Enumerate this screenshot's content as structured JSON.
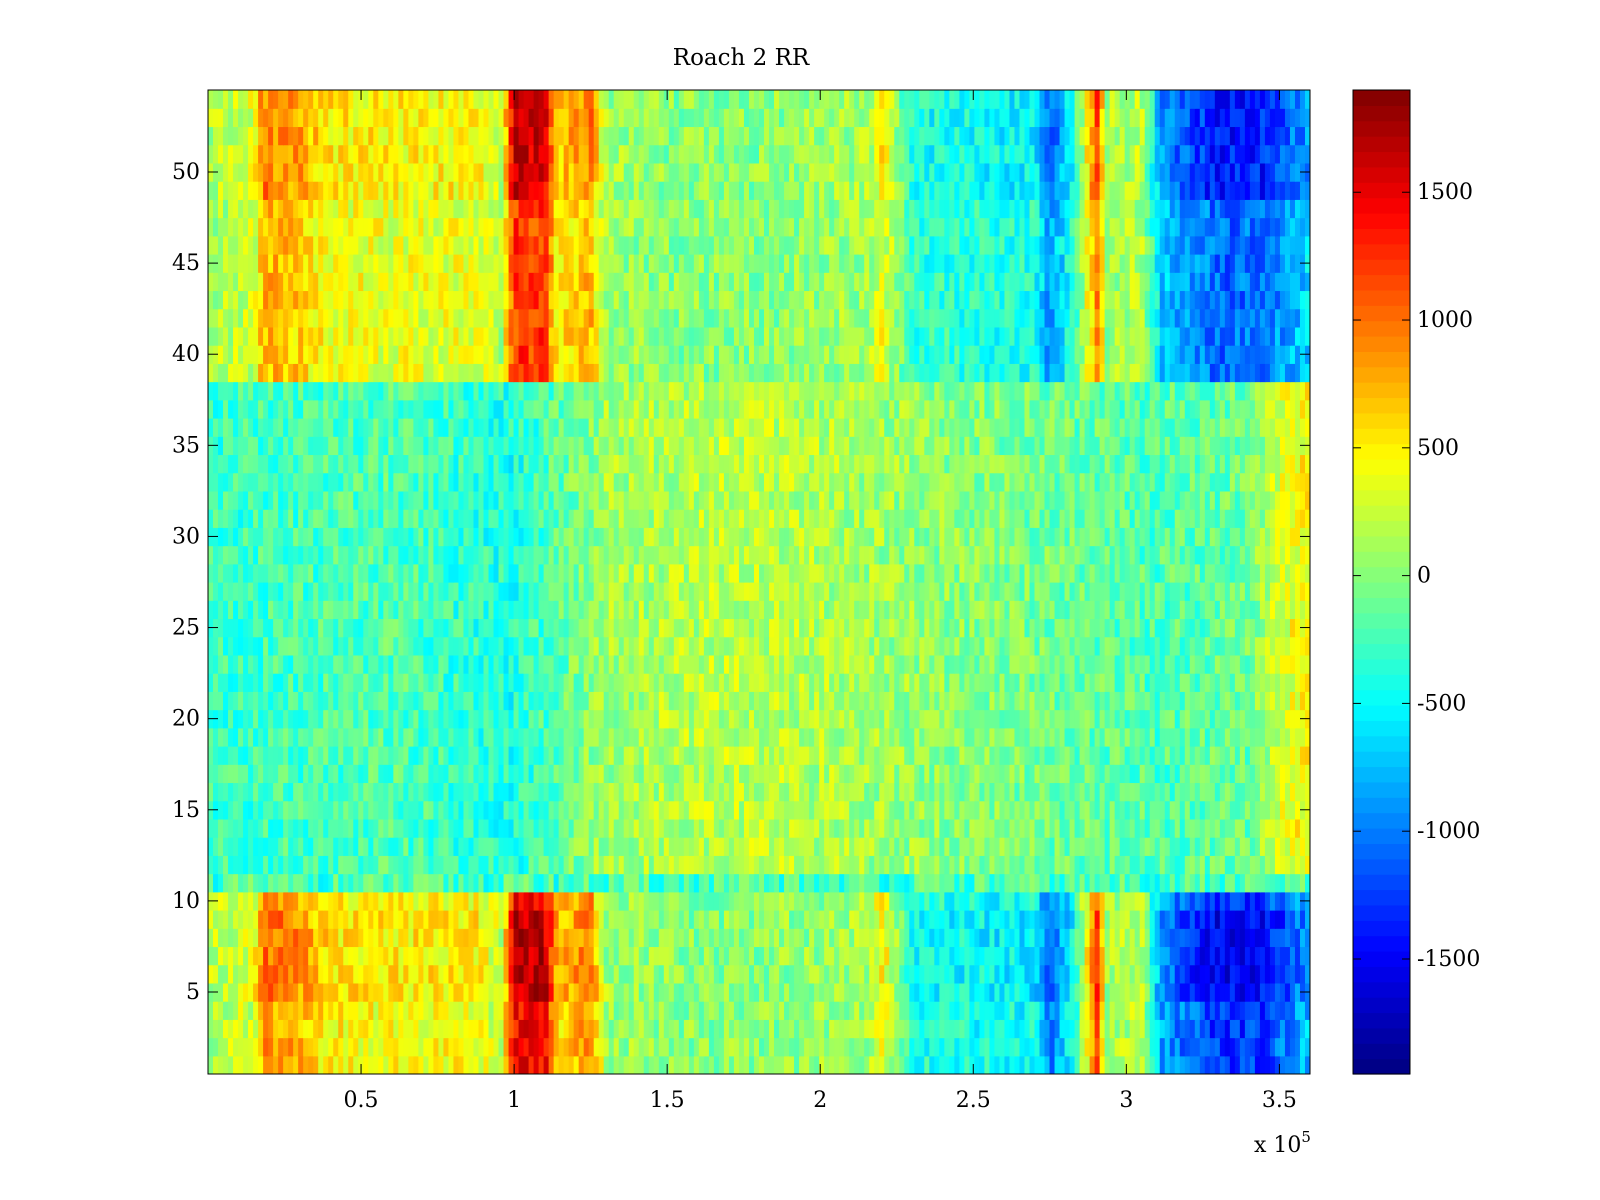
{
  "chart_data": {
    "type": "heatmap",
    "title": "Roach 2 RR",
    "xlabel": "",
    "ylabel": "",
    "x_exponent_label": "x 10",
    "x_exponent_power": "5",
    "xlim": [
      0,
      360000
    ],
    "ylim": [
      0.5,
      54.5
    ],
    "x_ticks": [
      {
        "value": 50000,
        "label": "0.5"
      },
      {
        "value": 100000,
        "label": "1"
      },
      {
        "value": 150000,
        "label": "1.5"
      },
      {
        "value": 200000,
        "label": "2"
      },
      {
        "value": 250000,
        "label": "2.5"
      },
      {
        "value": 300000,
        "label": "3"
      },
      {
        "value": 350000,
        "label": "3.5"
      }
    ],
    "y_ticks": [
      {
        "value": 5,
        "label": "5"
      },
      {
        "value": 10,
        "label": "10"
      },
      {
        "value": 15,
        "label": "15"
      },
      {
        "value": 20,
        "label": "20"
      },
      {
        "value": 25,
        "label": "25"
      },
      {
        "value": 30,
        "label": "30"
      },
      {
        "value": 35,
        "label": "35"
      },
      {
        "value": 40,
        "label": "40"
      },
      {
        "value": 45,
        "label": "45"
      },
      {
        "value": 50,
        "label": "50"
      }
    ],
    "colorbar": {
      "colormap": "jet",
      "clim": [
        -1950,
        1900
      ],
      "ticks": [
        {
          "value": 1500,
          "label": "1500"
        },
        {
          "value": 1000,
          "label": "1000"
        },
        {
          "value": 500,
          "label": "500"
        },
        {
          "value": 0,
          "label": "0"
        },
        {
          "value": -500,
          "label": "-500"
        },
        {
          "value": -1000,
          "label": "-1000"
        },
        {
          "value": -1500,
          "label": "-1500"
        }
      ]
    },
    "rows": 54,
    "row_bands": [
      {
        "rows": [
          1,
          10
        ],
        "name": "bottom block"
      },
      {
        "rows": [
          11,
          11
        ],
        "name": "separator row"
      },
      {
        "rows": [
          12,
          38
        ],
        "name": "middle block"
      },
      {
        "rows": [
          39,
          54
        ],
        "name": "top block"
      }
    ],
    "column_profile_outer": [
      {
        "x": 0,
        "value": 150
      },
      {
        "x": 15000,
        "value": 300
      },
      {
        "x": 18000,
        "value": 900
      },
      {
        "x": 28000,
        "value": 800
      },
      {
        "x": 40000,
        "value": 500
      },
      {
        "x": 60000,
        "value": 450
      },
      {
        "x": 88000,
        "value": 450
      },
      {
        "x": 96000,
        "value": 200
      },
      {
        "x": 100000,
        "value": 1500
      },
      {
        "x": 110000,
        "value": 1500
      },
      {
        "x": 114000,
        "value": 600
      },
      {
        "x": 125000,
        "value": 900
      },
      {
        "x": 130000,
        "value": 100
      },
      {
        "x": 150000,
        "value": 0
      },
      {
        "x": 180000,
        "value": 0
      },
      {
        "x": 216000,
        "value": 100
      },
      {
        "x": 220000,
        "value": 500
      },
      {
        "x": 230000,
        "value": -400
      },
      {
        "x": 270000,
        "value": -500
      },
      {
        "x": 275000,
        "value": -1100
      },
      {
        "x": 283000,
        "value": -400
      },
      {
        "x": 291000,
        "value": 1200
      },
      {
        "x": 293000,
        "value": 100
      },
      {
        "x": 305000,
        "value": 200
      },
      {
        "x": 312000,
        "value": -900
      },
      {
        "x": 330000,
        "value": -1350
      },
      {
        "x": 345000,
        "value": -1300
      },
      {
        "x": 360000,
        "value": -800
      }
    ],
    "column_profile_middle": [
      {
        "x": 0,
        "value": -300
      },
      {
        "x": 60000,
        "value": -200
      },
      {
        "x": 100000,
        "value": -400
      },
      {
        "x": 130000,
        "value": 100
      },
      {
        "x": 170000,
        "value": 200
      },
      {
        "x": 200000,
        "value": 150
      },
      {
        "x": 230000,
        "value": 50
      },
      {
        "x": 280000,
        "value": -100
      },
      {
        "x": 310000,
        "value": -200
      },
      {
        "x": 340000,
        "value": -100
      },
      {
        "x": 350000,
        "value": 300
      },
      {
        "x": 360000,
        "value": 500
      }
    ]
  }
}
